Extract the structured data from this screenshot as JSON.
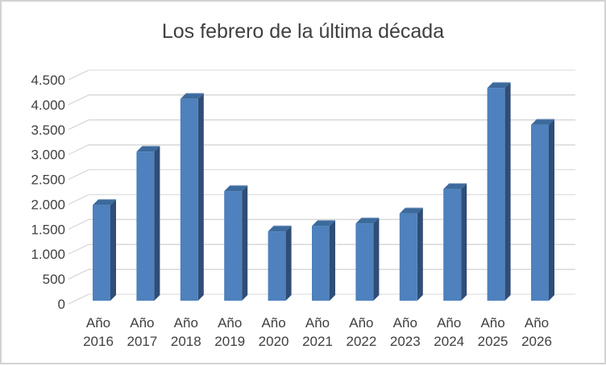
{
  "chart_data": {
    "type": "bar",
    "style": "3d-column",
    "title": "Los febrero de la última década",
    "xlabel": "",
    "ylabel": "",
    "categories": [
      "Año 2016",
      "Año 2017",
      "Año 2018",
      "Año 2019",
      "Año 2020",
      "Año 2021",
      "Año 2022",
      "Año 2023",
      "Año 2024",
      "Año 2025",
      "Año 2026"
    ],
    "values": [
      1920,
      2990,
      4050,
      2200,
      1390,
      1500,
      1550,
      1750,
      2240,
      4270,
      3530
    ],
    "ylim": [
      0,
      4500
    ],
    "y_ticks": [
      0,
      500,
      1000,
      1500,
      2000,
      2500,
      3000,
      3500,
      4000,
      4500
    ],
    "y_tick_labels": [
      "0",
      "500",
      "1.000",
      "1.500",
      "2.000",
      "2.500",
      "3.000",
      "3.500",
      "4.000",
      "4.500"
    ],
    "grid": true,
    "legend": false,
    "colors": {
      "bar_front": "#4e81bd",
      "bar_side": "#2f4d76",
      "bar_top": "#3d6a9d",
      "bar_top_highlight": "#8ca8cc",
      "gridline": "#d9d9d9",
      "title_text": "#3f3f3f",
      "axis_text": "#404040",
      "frame_border": "#d3d3d3",
      "background": "#ffffff"
    }
  }
}
